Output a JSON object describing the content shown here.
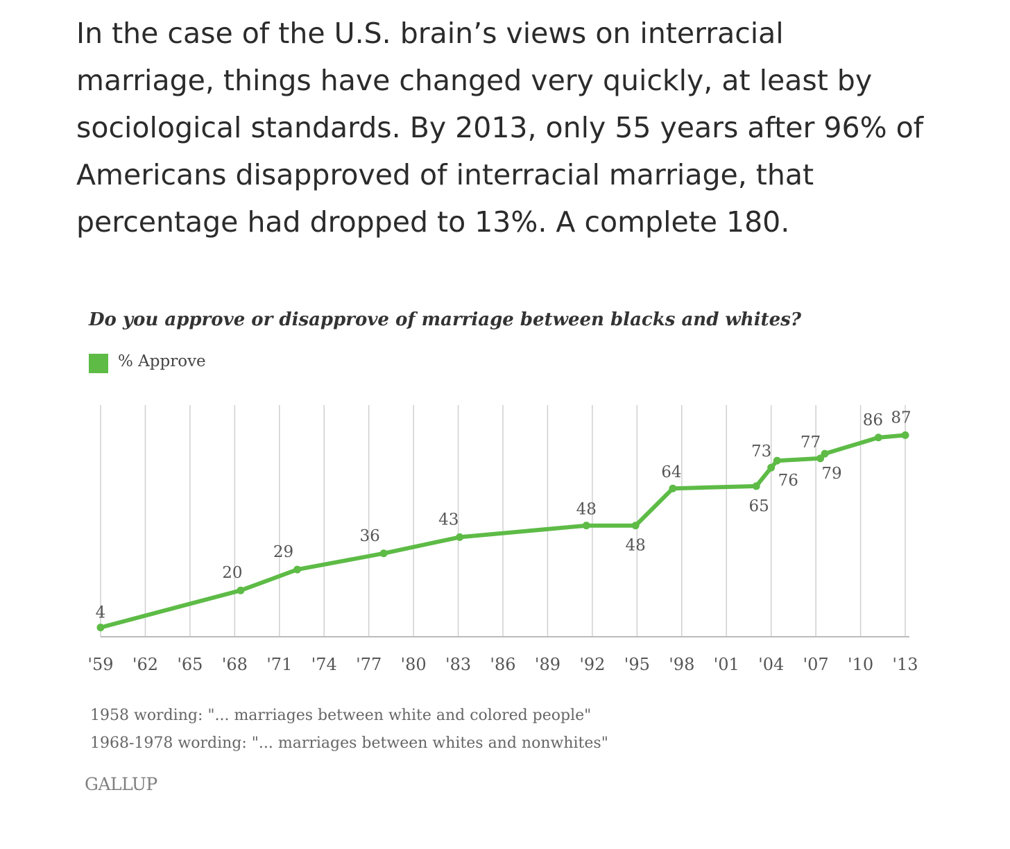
{
  "article": {
    "paragraph": "In the case of the U.S. brain’s views on interracial marriage, things have changed very quickly, at least by sociological standards. By 2013, only 55 years after 96% of Americans disapproved of interracial marriage, that percentage had dropped to 13%. A complete 180."
  },
  "colors": {
    "series": "#5dbb46",
    "gridline": "#d0d0d0",
    "axis": "#bbbbbb",
    "text": "#555555"
  },
  "chart_data": {
    "type": "line",
    "title": "Do you approve or disapprove of marriage between blacks and whites?",
    "legend": {
      "position": "top-left"
    },
    "grid": {
      "vertical": true,
      "horizontal": false
    },
    "x_tick_labels": [
      "'59",
      "'62",
      "'65",
      "'68",
      "'71",
      "'74",
      "'77",
      "'80",
      "'83",
      "'86",
      "'89",
      "'92",
      "'95",
      "'98",
      "'01",
      "'04",
      "'07",
      "'10",
      "'13"
    ],
    "x_ticks": [
      1959,
      1962,
      1965,
      1968,
      1971,
      1974,
      1977,
      1980,
      1983,
      1986,
      1989,
      1992,
      1995,
      1998,
      2001,
      2004,
      2007,
      2010,
      2013
    ],
    "xlim": [
      1959,
      2013
    ],
    "ylim": [
      0,
      100
    ],
    "series": [
      {
        "name": "% Approve",
        "color": "#5dbb46",
        "points": [
          {
            "x": 1959.0,
            "y": 4,
            "label": "4"
          },
          {
            "x": 1968.4,
            "y": 20,
            "label": "20"
          },
          {
            "x": 1972.2,
            "y": 29,
            "label": "29"
          },
          {
            "x": 1978.0,
            "y": 36,
            "label": "36"
          },
          {
            "x": 1983.1,
            "y": 43,
            "label": "43"
          },
          {
            "x": 1991.6,
            "y": 48,
            "label": "48"
          },
          {
            "x": 1994.9,
            "y": 48,
            "label": "48"
          },
          {
            "x": 1997.4,
            "y": 64,
            "label": "64"
          },
          {
            "x": 2003.0,
            "y": 65,
            "label": "65"
          },
          {
            "x": 2004.0,
            "y": 73,
            "label": "73"
          },
          {
            "x": 2004.4,
            "y": 76,
            "label": "76"
          },
          {
            "x": 2007.3,
            "y": 77,
            "label": "77"
          },
          {
            "x": 2007.6,
            "y": 79,
            "label": "79"
          },
          {
            "x": 2011.2,
            "y": 86,
            "label": "86"
          },
          {
            "x": 2013.0,
            "y": 87,
            "label": "87"
          }
        ]
      }
    ],
    "notes": [
      "1958 wording: \"... marriages between white and colored people\"",
      "1968-1978 wording: \"... marriages between whites and nonwhites\""
    ],
    "source": "GALLUP"
  }
}
